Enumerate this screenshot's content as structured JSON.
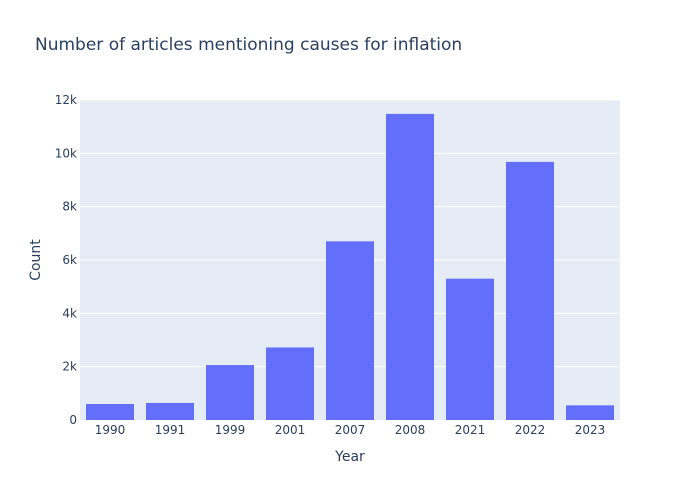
{
  "chart_data": {
    "type": "bar",
    "title": "Number of articles mentioning causes for inflation",
    "xlabel": "Year",
    "ylabel": "Count",
    "categories": [
      "1990",
      "1991",
      "1999",
      "2001",
      "2007",
      "2008",
      "2021",
      "2022",
      "2023"
    ],
    "values": [
      600,
      640,
      2060,
      2720,
      6700,
      11480,
      5300,
      9680,
      550
    ],
    "ylim": [
      0,
      12000
    ],
    "yticks": [
      0,
      2000,
      4000,
      6000,
      8000,
      10000,
      12000
    ],
    "ytick_labels": [
      "0",
      "2k",
      "4k",
      "6k",
      "8k",
      "10k",
      "12k"
    ],
    "grid": true,
    "colors": {
      "bar": "#636efa",
      "plot_background": "#e5ecf6",
      "grid": "#ffffff",
      "text": "#2a3f5f"
    }
  }
}
